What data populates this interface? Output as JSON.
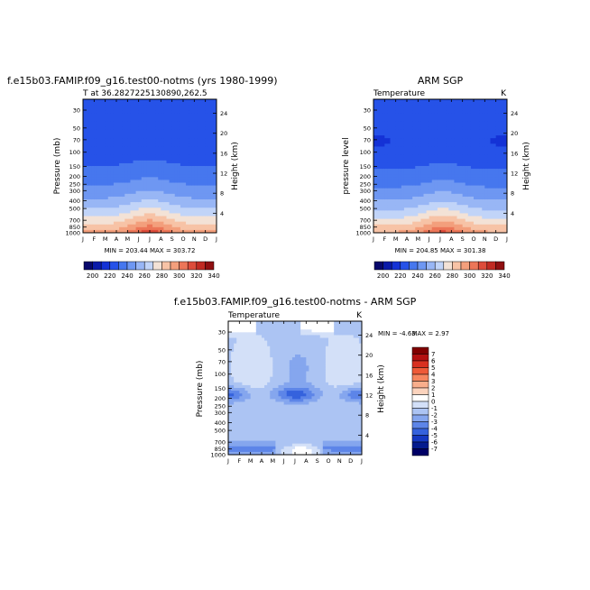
{
  "chart_data": [
    {
      "type": "contour",
      "title": "f.e15b03.FAMIP.f09_g16.test00-notms (yrs 1980-1999)",
      "subtitle_left": "T at 36.2827225130890,262.5",
      "subtitle_right": "",
      "ylabel": "Pressure (mb)",
      "ylabel_right": "Height (km)",
      "min_max_text": "MIN = 203.44  MAX = 303.72",
      "x": [
        "J",
        "F",
        "M",
        "A",
        "M",
        "J",
        "J",
        "A",
        "S",
        "O",
        "N",
        "D",
        "J"
      ],
      "pressure_ticks": [
        30,
        50,
        70,
        100,
        150,
        200,
        250,
        300,
        400,
        500,
        700,
        850,
        1000
      ],
      "height_ticks": [
        4,
        8,
        12,
        16,
        20,
        24
      ],
      "colorbar_labels": [
        "200",
        "220",
        "240",
        "260",
        "280",
        "300",
        "320",
        "340"
      ]
    },
    {
      "type": "contour",
      "title": "ARM SGP",
      "subtitle_left": "Temperature",
      "subtitle_right": "K",
      "ylabel": "pressure level",
      "ylabel_right": "Height (km)",
      "min_max_text": "MIN = 204.85  MAX = 301.38",
      "x": [
        "J",
        "F",
        "M",
        "A",
        "M",
        "J",
        "J",
        "A",
        "S",
        "O",
        "N",
        "D",
        "J"
      ],
      "pressure_ticks": [
        30,
        50,
        70,
        100,
        150,
        200,
        250,
        300,
        400,
        500,
        700,
        850,
        1000
      ],
      "height_ticks": [
        4,
        8,
        12,
        16,
        20,
        24
      ],
      "colorbar_labels": [
        "200",
        "220",
        "240",
        "260",
        "280",
        "300",
        "320",
        "340"
      ]
    },
    {
      "type": "contour",
      "title": "f.e15b03.FAMIP.f09_g16.test00-notms - ARM SGP",
      "subtitle_left": "Temperature",
      "subtitle_right": "K",
      "ylabel": "Pressure (mb)",
      "ylabel_right": "Height (km)",
      "min_text": "MIN =  -4.63",
      "max_text": "MAX =   2.97",
      "x": [
        "J",
        "F",
        "M",
        "A",
        "M",
        "J",
        "J",
        "A",
        "S",
        "O",
        "N",
        "D",
        "J"
      ],
      "pressure_ticks": [
        30,
        50,
        70,
        100,
        150,
        200,
        250,
        300,
        400,
        500,
        700,
        850,
        1000
      ],
      "height_ticks": [
        4,
        8,
        12,
        16,
        20,
        24
      ],
      "colorbar_labels": [
        "7",
        "6",
        "5",
        "4",
        "3",
        "2",
        "1",
        "0",
        "-1",
        "-2",
        "-3",
        "-4",
        "-5",
        "-6",
        "-7"
      ]
    }
  ],
  "colors": {
    "abs_scale": [
      "#08086b",
      "#0a1aa8",
      "#1432d6",
      "#2652e8",
      "#4677ee",
      "#6e97f2",
      "#98b6f5",
      "#c1d4f8",
      "#f3e2d6",
      "#f7c3a6",
      "#f39f7c",
      "#ec7658",
      "#dd4c3a",
      "#c02a22",
      "#8f0f10"
    ],
    "diff_scale": [
      "#800000",
      "#b31010",
      "#d83020",
      "#ee5a38",
      "#f6865f",
      "#f9ae8c",
      "#fbd3bd",
      "#ffffff",
      "#d3e0f8",
      "#acc4f3",
      "#85a6ee",
      "#5d85e8",
      "#3562dd",
      "#1538c2",
      "#041b8e",
      "#000066"
    ]
  }
}
